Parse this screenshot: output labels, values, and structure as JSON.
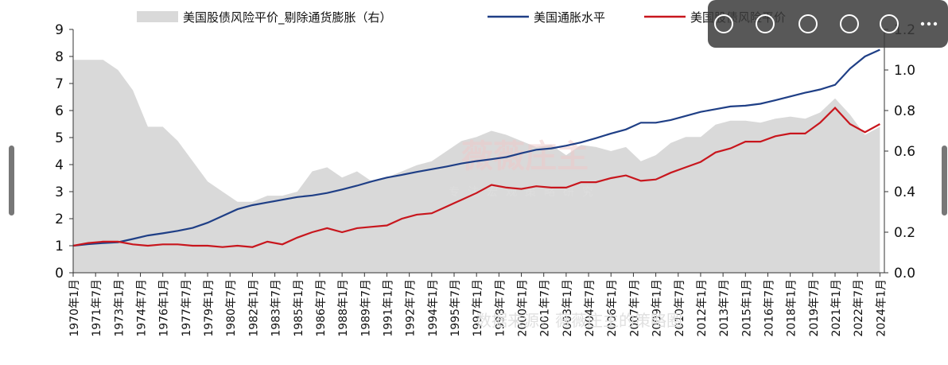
{
  "chart_data": {
    "type": "line",
    "legend": [
      "美国股债风险平价_剔除通货膨胀（右）",
      "美国通胀水平",
      "美国股债风险平价"
    ],
    "x": [
      1970,
      1971,
      1972,
      1973,
      1974,
      1975,
      1976,
      1977,
      1978,
      1979,
      1980,
      1981,
      1982,
      1983,
      1984,
      1985,
      1986,
      1987,
      1988,
      1989,
      1990,
      1991,
      1992,
      1993,
      1994,
      1995,
      1996,
      1997,
      1998,
      1999,
      2000,
      2001,
      2002,
      2003,
      2004,
      2005,
      2006,
      2007,
      2008,
      2009,
      2010,
      2011,
      2012,
      2013,
      2014,
      2015,
      2016,
      2017,
      2018,
      2019,
      2020,
      2021,
      2022,
      2023,
      2024
    ],
    "series": [
      {
        "name": "美国股债风险平价_剔除通货膨胀（右）",
        "color": "#d9d9d9",
        "kind": "area",
        "axis": "y2",
        "values": [
          1.05,
          1.05,
          1.05,
          1.0,
          0.9,
          0.72,
          0.72,
          0.65,
          0.55,
          0.45,
          0.4,
          0.35,
          0.35,
          0.38,
          0.38,
          0.4,
          0.5,
          0.52,
          0.47,
          0.5,
          0.45,
          0.47,
          0.5,
          0.53,
          0.55,
          0.6,
          0.65,
          0.67,
          0.7,
          0.68,
          0.65,
          0.62,
          0.63,
          0.58,
          0.63,
          0.62,
          0.6,
          0.62,
          0.55,
          0.58,
          0.64,
          0.67,
          0.67,
          0.73,
          0.75,
          0.75,
          0.74,
          0.76,
          0.77,
          0.76,
          0.79,
          0.86,
          0.78,
          0.68,
          0.72
        ]
      },
      {
        "name": "美国通胀水平",
        "color": "#1f3f86",
        "kind": "line",
        "values": [
          1.0,
          1.06,
          1.1,
          1.13,
          1.25,
          1.38,
          1.46,
          1.55,
          1.66,
          1.85,
          2.1,
          2.35,
          2.5,
          2.6,
          2.7,
          2.8,
          2.86,
          2.95,
          3.08,
          3.22,
          3.38,
          3.52,
          3.62,
          3.73,
          3.83,
          3.93,
          4.04,
          4.13,
          4.2,
          4.28,
          4.42,
          4.55,
          4.6,
          4.7,
          4.82,
          4.98,
          5.15,
          5.3,
          5.55,
          5.55,
          5.65,
          5.8,
          5.95,
          6.05,
          6.15,
          6.18,
          6.25,
          6.38,
          6.52,
          6.66,
          6.78,
          6.95,
          7.55,
          8.0,
          8.25
        ]
      },
      {
        "name": "美国股债风险平价",
        "color": "#c8161d",
        "kind": "line",
        "values": [
          1.0,
          1.1,
          1.15,
          1.15,
          1.05,
          1.0,
          1.05,
          1.05,
          1.0,
          1.0,
          0.95,
          1.0,
          0.95,
          1.15,
          1.05,
          1.3,
          1.5,
          1.65,
          1.5,
          1.65,
          1.7,
          1.75,
          2.0,
          2.15,
          2.2,
          2.45,
          2.7,
          2.95,
          3.25,
          3.15,
          3.1,
          3.2,
          3.15,
          3.15,
          3.35,
          3.35,
          3.5,
          3.6,
          3.4,
          3.45,
          3.7,
          3.9,
          4.1,
          4.45,
          4.6,
          4.85,
          4.85,
          5.05,
          5.15,
          5.15,
          5.55,
          6.1,
          5.5,
          5.2,
          5.5
        ]
      }
    ],
    "xlim": [
      1970,
      2024.3
    ],
    "xticks": [
      {
        "value": 1970,
        "label": "1970年1月"
      },
      {
        "value": 1971.5,
        "label": "1971年7月"
      },
      {
        "value": 1973,
        "label": "1973年1月"
      },
      {
        "value": 1974.5,
        "label": "1974年7月"
      },
      {
        "value": 1976,
        "label": "1976年1月"
      },
      {
        "value": 1977.5,
        "label": "1977年7月"
      },
      {
        "value": 1979,
        "label": "1979年1月"
      },
      {
        "value": 1980.5,
        "label": "1980年7月"
      },
      {
        "value": 1982,
        "label": "1982年1月"
      },
      {
        "value": 1983.5,
        "label": "1983年7月"
      },
      {
        "value": 1985,
        "label": "1985年1月"
      },
      {
        "value": 1986.5,
        "label": "1986年7月"
      },
      {
        "value": 1988,
        "label": "1988年1月"
      },
      {
        "value": 1989.5,
        "label": "1989年7月"
      },
      {
        "value": 1991,
        "label": "1991年1月"
      },
      {
        "value": 1992.5,
        "label": "1992年7月"
      },
      {
        "value": 1994,
        "label": "1994年1月"
      },
      {
        "value": 1995.5,
        "label": "1995年7月"
      },
      {
        "value": 1997,
        "label": "1997年1月"
      },
      {
        "value": 1998.5,
        "label": "1998年7月"
      },
      {
        "value": 2000,
        "label": "2000年1月"
      },
      {
        "value": 2001.5,
        "label": "2001年7月"
      },
      {
        "value": 2003,
        "label": "2003年1月"
      },
      {
        "value": 2004.5,
        "label": "2004年7月"
      },
      {
        "value": 2006,
        "label": "2006年1月"
      },
      {
        "value": 2007.5,
        "label": "2007年7月"
      },
      {
        "value": 2009,
        "label": "2009年1月"
      },
      {
        "value": 2010.5,
        "label": "2010年7月"
      },
      {
        "value": 2012,
        "label": "2012年1月"
      },
      {
        "value": 2013.5,
        "label": "2013年7月"
      },
      {
        "value": 2015,
        "label": "2015年1月"
      },
      {
        "value": 2016.5,
        "label": "2016年7月"
      },
      {
        "value": 2018,
        "label": "2018年1月"
      },
      {
        "value": 2019.5,
        "label": "2019年7月"
      },
      {
        "value": 2021,
        "label": "2021年1月"
      },
      {
        "value": 2022.5,
        "label": "2022年7月"
      },
      {
        "value": 2024,
        "label": "2024年1月"
      }
    ],
    "ylim": [
      0,
      9
    ],
    "yticks": [
      0,
      1,
      2,
      3,
      4,
      5,
      6,
      7,
      8,
      9
    ],
    "y2lim": [
      0,
      1.2
    ],
    "y2ticks": [
      {
        "value": 0,
        "label": "0.0"
      },
      {
        "value": 0.2,
        "label": "0.2"
      },
      {
        "value": 0.4,
        "label": "0.4"
      },
      {
        "value": 0.6,
        "label": "0.6"
      },
      {
        "value": 0.8,
        "label": "0.8"
      },
      {
        "value": 1.0,
        "label": "1.0"
      },
      {
        "value": 1.2,
        "label": "1.2"
      }
    ],
    "watermark": "薇薇庄主",
    "watermark_sub": "专注宏观策略研究",
    "source": "数据来源：薇薇庄主的策略圈"
  }
}
